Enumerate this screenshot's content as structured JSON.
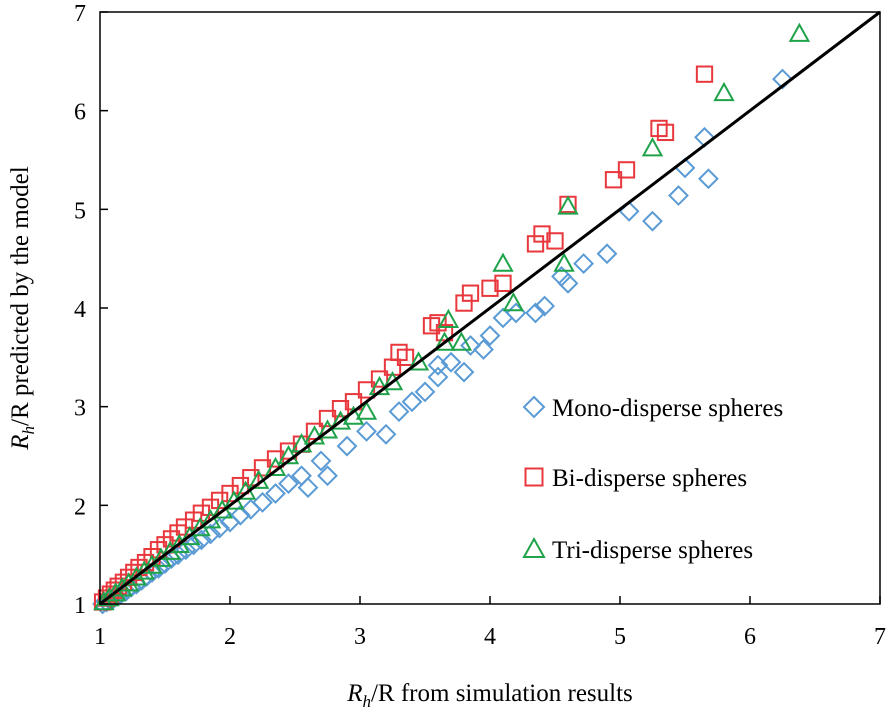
{
  "chart_data": {
    "type": "scatter",
    "title": "",
    "xlabel": {
      "sym": "R",
      "sub": "h",
      "rest": "/R from simulation results"
    },
    "ylabel": {
      "sym": "R",
      "sub": "h",
      "rest": "/R predicted by the model"
    },
    "xlim": [
      1,
      7
    ],
    "ylim": [
      1,
      7
    ],
    "xticks": [
      "1",
      "2",
      "3",
      "4",
      "5",
      "6",
      "7"
    ],
    "yticks": [
      "1",
      "2",
      "3",
      "4",
      "5",
      "6",
      "7"
    ],
    "grid": false,
    "legend_position": "center-right",
    "reference_line": {
      "name": "y = x",
      "color": "#000000",
      "points": [
        [
          1,
          1
        ],
        [
          7,
          7
        ]
      ]
    },
    "series": [
      {
        "name": "Mono-disperse spheres",
        "marker": "diamond",
        "color": "#5B9BD5",
        "points": [
          [
            1.02,
            1.0
          ],
          [
            1.05,
            1.02
          ],
          [
            1.08,
            1.04
          ],
          [
            1.1,
            1.05
          ],
          [
            1.13,
            1.08
          ],
          [
            1.16,
            1.1
          ],
          [
            1.2,
            1.13
          ],
          [
            1.24,
            1.17
          ],
          [
            1.28,
            1.2
          ],
          [
            1.32,
            1.24
          ],
          [
            1.36,
            1.28
          ],
          [
            1.4,
            1.32
          ],
          [
            1.45,
            1.36
          ],
          [
            1.5,
            1.41
          ],
          [
            1.55,
            1.46
          ],
          [
            1.6,
            1.5
          ],
          [
            1.66,
            1.55
          ],
          [
            1.72,
            1.6
          ],
          [
            1.78,
            1.65
          ],
          [
            1.85,
            1.71
          ],
          [
            1.92,
            1.77
          ],
          [
            2.0,
            1.83
          ],
          [
            2.08,
            1.9
          ],
          [
            2.16,
            1.96
          ],
          [
            2.25,
            2.03
          ],
          [
            2.35,
            2.12
          ],
          [
            2.45,
            2.22
          ],
          [
            2.55,
            2.3
          ],
          [
            2.7,
            2.45
          ],
          [
            2.75,
            2.3
          ],
          [
            2.6,
            2.18
          ],
          [
            2.9,
            2.6
          ],
          [
            3.05,
            2.75
          ],
          [
            3.2,
            2.72
          ],
          [
            3.3,
            2.95
          ],
          [
            3.4,
            3.05
          ],
          [
            3.5,
            3.15
          ],
          [
            3.6,
            3.3
          ],
          [
            3.6,
            3.42
          ],
          [
            3.7,
            3.45
          ],
          [
            3.8,
            3.35
          ],
          [
            3.85,
            3.62
          ],
          [
            3.95,
            3.58
          ],
          [
            4.0,
            3.72
          ],
          [
            4.1,
            3.9
          ],
          [
            4.2,
            3.95
          ],
          [
            4.35,
            3.95
          ],
          [
            4.42,
            4.02
          ],
          [
            4.55,
            4.32
          ],
          [
            4.6,
            4.25
          ],
          [
            4.72,
            4.45
          ],
          [
            4.9,
            4.55
          ],
          [
            5.07,
            4.98
          ],
          [
            5.25,
            4.88
          ],
          [
            5.45,
            5.14
          ],
          [
            5.5,
            5.42
          ],
          [
            5.65,
            5.73
          ],
          [
            5.68,
            5.31
          ],
          [
            6.25,
            6.32
          ]
        ]
      },
      {
        "name": "Bi-disperse spheres",
        "marker": "square",
        "color": "#E8383D",
        "points": [
          [
            1.02,
            1.02
          ],
          [
            1.05,
            1.06
          ],
          [
            1.08,
            1.1
          ],
          [
            1.11,
            1.14
          ],
          [
            1.14,
            1.18
          ],
          [
            1.18,
            1.22
          ],
          [
            1.22,
            1.27
          ],
          [
            1.26,
            1.32
          ],
          [
            1.3,
            1.37
          ],
          [
            1.35,
            1.42
          ],
          [
            1.4,
            1.48
          ],
          [
            1.45,
            1.55
          ],
          [
            1.5,
            1.6
          ],
          [
            1.55,
            1.66
          ],
          [
            1.6,
            1.72
          ],
          [
            1.65,
            1.78
          ],
          [
            1.72,
            1.85
          ],
          [
            1.78,
            1.92
          ],
          [
            1.85,
            1.98
          ],
          [
            1.92,
            2.05
          ],
          [
            2.0,
            2.12
          ],
          [
            2.08,
            2.2
          ],
          [
            2.16,
            2.28
          ],
          [
            2.25,
            2.38
          ],
          [
            2.35,
            2.47
          ],
          [
            2.45,
            2.55
          ],
          [
            2.55,
            2.62
          ],
          [
            2.65,
            2.75
          ],
          [
            2.75,
            2.88
          ],
          [
            2.85,
            2.98
          ],
          [
            2.95,
            3.05
          ],
          [
            3.05,
            3.17
          ],
          [
            3.15,
            3.28
          ],
          [
            3.25,
            3.4
          ],
          [
            3.3,
            3.55
          ],
          [
            3.35,
            3.5
          ],
          [
            3.55,
            3.82
          ],
          [
            3.6,
            3.85
          ],
          [
            3.65,
            3.75
          ],
          [
            3.8,
            4.05
          ],
          [
            3.85,
            4.15
          ],
          [
            4.0,
            4.2
          ],
          [
            4.1,
            4.25
          ],
          [
            4.35,
            4.65
          ],
          [
            4.4,
            4.75
          ],
          [
            4.5,
            4.68
          ],
          [
            4.6,
            5.05
          ],
          [
            4.95,
            5.3
          ],
          [
            5.05,
            5.4
          ],
          [
            5.3,
            5.82
          ],
          [
            5.35,
            5.78
          ],
          [
            5.65,
            6.37
          ]
        ]
      },
      {
        "name": "Tri-disperse spheres",
        "marker": "triangle",
        "color": "#1FA34A",
        "points": [
          [
            1.03,
            1.02
          ],
          [
            1.07,
            1.06
          ],
          [
            1.12,
            1.11
          ],
          [
            1.17,
            1.16
          ],
          [
            1.22,
            1.21
          ],
          [
            1.28,
            1.27
          ],
          [
            1.34,
            1.33
          ],
          [
            1.4,
            1.39
          ],
          [
            1.47,
            1.46
          ],
          [
            1.54,
            1.53
          ],
          [
            1.61,
            1.6
          ],
          [
            1.69,
            1.68
          ],
          [
            1.77,
            1.77
          ],
          [
            1.85,
            1.85
          ],
          [
            1.94,
            1.95
          ],
          [
            2.03,
            2.04
          ],
          [
            2.12,
            2.14
          ],
          [
            2.22,
            2.25
          ],
          [
            2.35,
            2.38
          ],
          [
            2.45,
            2.5
          ],
          [
            2.55,
            2.62
          ],
          [
            2.65,
            2.7
          ],
          [
            2.75,
            2.76
          ],
          [
            2.85,
            2.85
          ],
          [
            2.95,
            2.9
          ],
          [
            3.05,
            2.95
          ],
          [
            3.15,
            3.2
          ],
          [
            3.25,
            3.25
          ],
          [
            3.45,
            3.45
          ],
          [
            3.65,
            3.65
          ],
          [
            3.68,
            3.88
          ],
          [
            3.78,
            3.65
          ],
          [
            4.1,
            4.45
          ],
          [
            4.18,
            4.05
          ],
          [
            4.57,
            4.45
          ],
          [
            4.6,
            5.03
          ],
          [
            5.25,
            5.62
          ],
          [
            5.8,
            6.18
          ],
          [
            6.38,
            6.78
          ]
        ]
      }
    ]
  }
}
